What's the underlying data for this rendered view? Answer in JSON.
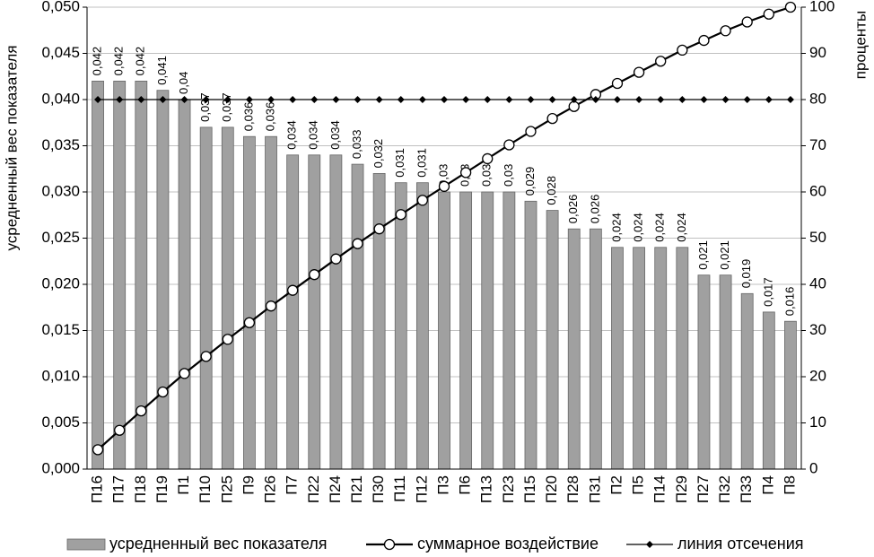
{
  "chart_data": {
    "type": "bar",
    "y_label": "усредненный вес показателя",
    "y2_label": "проценты",
    "categories": [
      "П16",
      "П17",
      "П18",
      "П19",
      "П1",
      "П10",
      "П25",
      "П9",
      "П26",
      "П7",
      "П22",
      "П24",
      "П21",
      "П30",
      "П11",
      "П12",
      "П3",
      "П6",
      "П13",
      "П23",
      "П15",
      "П20",
      "П28",
      "П31",
      "П2",
      "П5",
      "П14",
      "П29",
      "П27",
      "П32",
      "П33",
      "П4",
      "П8"
    ],
    "series": [
      {
        "name": "усредненный вес показателя",
        "type": "bar",
        "color": "#a0a0a0",
        "values": [
          0.042,
          0.042,
          0.042,
          0.041,
          0.04,
          0.037,
          0.037,
          0.036,
          0.036,
          0.034,
          0.034,
          0.034,
          0.033,
          0.032,
          0.031,
          0.031,
          0.03,
          0.03,
          0.03,
          0.03,
          0.029,
          0.028,
          0.026,
          0.026,
          0.024,
          0.024,
          0.024,
          0.024,
          0.021,
          0.021,
          0.019,
          0.017,
          0.016
        ],
        "value_labels": [
          "0,042",
          "0,042",
          "0,042",
          "0,041",
          "0,04",
          "0,037",
          "0,037",
          "0,036",
          "0,036",
          "0,034",
          "0,034",
          "0,034",
          "0,033",
          "0,032",
          "0,031",
          "0,031",
          "0,03",
          "0,03",
          "0,03",
          "0,03",
          "0,029",
          "0,028",
          "0,026",
          "0,026",
          "0,024",
          "0,024",
          "0,024",
          "0,024",
          "0,021",
          "0,021",
          "0,019",
          "0,017",
          "0,016"
        ]
      },
      {
        "name": "суммарное воздействие",
        "type": "line",
        "marker": "circle",
        "color": "#000000",
        "axis": "y2",
        "values": [
          4.2,
          8.4,
          12.6,
          16.7,
          20.7,
          24.4,
          28.1,
          31.7,
          35.3,
          38.7,
          42.1,
          45.5,
          48.8,
          52,
          55.1,
          58.2,
          61.2,
          64.2,
          67.2,
          70.2,
          73.1,
          75.9,
          78.5,
          81.1,
          83.5,
          85.9,
          88.3,
          90.7,
          92.8,
          94.9,
          96.8,
          98.5,
          100
        ]
      },
      {
        "name": "линия отсечения",
        "type": "line",
        "marker": "diamond",
        "color": "#000000",
        "axis": "y2",
        "values": [
          80,
          80,
          80,
          80,
          80,
          80,
          80,
          80,
          80,
          80,
          80,
          80,
          80,
          80,
          80,
          80,
          80,
          80,
          80,
          80,
          80,
          80,
          80,
          80,
          80,
          80,
          80,
          80,
          80,
          80,
          80,
          80,
          80
        ]
      }
    ],
    "ylim": [
      0,
      0.05
    ],
    "yticks": [
      {
        "value": 0,
        "label": "0,000"
      },
      {
        "value": 0.005,
        "label": "0,005"
      },
      {
        "value": 0.01,
        "label": "0,010"
      },
      {
        "value": 0.015,
        "label": "0,015"
      },
      {
        "value": 0.02,
        "label": "0,020"
      },
      {
        "value": 0.025,
        "label": "0,025"
      },
      {
        "value": 0.03,
        "label": "0,030"
      },
      {
        "value": 0.035,
        "label": "0,035"
      },
      {
        "value": 0.04,
        "label": "0,040"
      },
      {
        "value": 0.045,
        "label": "0,045"
      },
      {
        "value": 0.05,
        "label": "0,050"
      }
    ],
    "y2lim": [
      0,
      100
    ],
    "y2ticks": [
      0,
      10,
      20,
      30,
      40,
      50,
      60,
      70,
      80,
      90,
      100
    ],
    "grid": true,
    "legend": "bottom"
  }
}
